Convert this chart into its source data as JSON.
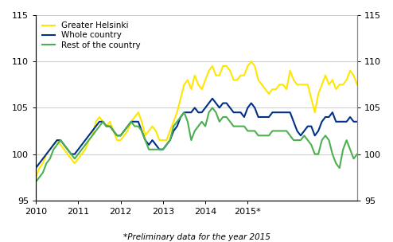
{
  "greater_helsinki": [
    97.5,
    98.5,
    99.0,
    100.0,
    100.5,
    101.0,
    101.5,
    101.0,
    100.5,
    100.0,
    99.5,
    99.0,
    99.5,
    100.0,
    100.5,
    101.5,
    102.0,
    103.5,
    104.0,
    103.5,
    103.0,
    103.5,
    102.5,
    101.5,
    101.5,
    102.0,
    102.5,
    103.5,
    104.0,
    104.5,
    103.5,
    102.0,
    102.5,
    103.0,
    102.5,
    101.5,
    101.5,
    101.5,
    102.5,
    103.5,
    104.5,
    106.0,
    107.5,
    108.0,
    107.0,
    108.5,
    107.5,
    107.0,
    108.0,
    109.0,
    109.5,
    108.5,
    108.5,
    109.5,
    109.5,
    109.0,
    108.0,
    108.0,
    108.5,
    108.5,
    109.5,
    110.0,
    109.5,
    108.0,
    107.5,
    107.0,
    106.5,
    107.0,
    107.0,
    107.5,
    107.5,
    107.0,
    109.0,
    108.0,
    107.5,
    107.5,
    107.5,
    107.5,
    106.0,
    104.5,
    106.5,
    107.5,
    108.5,
    107.5,
    108.0,
    107.0,
    107.5,
    107.5,
    108.0,
    109.0,
    108.5,
    107.5
  ],
  "whole_country": [
    98.5,
    99.0,
    99.5,
    100.0,
    100.5,
    101.0,
    101.5,
    101.5,
    101.0,
    100.5,
    100.0,
    100.0,
    100.5,
    101.0,
    101.5,
    102.0,
    102.5,
    103.0,
    103.5,
    103.5,
    103.0,
    103.0,
    102.5,
    102.0,
    102.0,
    102.5,
    103.0,
    103.5,
    103.5,
    103.5,
    102.5,
    101.5,
    101.0,
    101.5,
    101.0,
    100.5,
    100.5,
    101.0,
    101.5,
    102.5,
    103.0,
    104.0,
    104.5,
    104.5,
    104.5,
    105.0,
    104.5,
    104.5,
    105.0,
    105.5,
    106.0,
    105.5,
    105.0,
    105.5,
    105.5,
    105.0,
    104.5,
    104.5,
    104.5,
    104.0,
    105.0,
    105.5,
    105.0,
    104.0,
    104.0,
    104.0,
    104.0,
    104.5,
    104.5,
    104.5,
    104.5,
    104.5,
    104.5,
    103.5,
    102.5,
    102.0,
    102.5,
    103.0,
    103.0,
    102.0,
    102.5,
    103.5,
    104.0,
    104.0,
    104.5,
    103.5,
    103.5,
    103.5,
    103.5,
    104.0,
    103.5,
    103.5
  ],
  "rest_of_country": [
    97.0,
    97.5,
    98.0,
    99.0,
    99.5,
    100.5,
    101.0,
    101.5,
    101.0,
    100.5,
    100.0,
    99.5,
    100.0,
    100.5,
    101.0,
    101.5,
    102.0,
    102.5,
    103.0,
    103.5,
    103.0,
    103.0,
    102.5,
    102.0,
    102.0,
    102.5,
    103.0,
    103.5,
    103.0,
    103.0,
    102.5,
    101.5,
    100.5,
    100.5,
    100.5,
    100.5,
    100.5,
    101.0,
    101.5,
    103.0,
    103.5,
    104.0,
    104.5,
    103.5,
    101.5,
    102.5,
    103.0,
    103.5,
    103.0,
    104.5,
    105.0,
    104.5,
    103.5,
    104.0,
    104.0,
    103.5,
    103.0,
    103.0,
    103.0,
    103.0,
    102.5,
    102.5,
    102.5,
    102.0,
    102.0,
    102.0,
    102.0,
    102.5,
    102.5,
    102.5,
    102.5,
    102.5,
    102.0,
    101.5,
    101.5,
    101.5,
    102.0,
    101.5,
    101.0,
    100.0,
    100.0,
    101.5,
    102.0,
    101.5,
    100.0,
    99.0,
    98.5,
    100.5,
    101.5,
    100.5,
    99.5,
    100.0
  ],
  "colors": {
    "greater_helsinki": "#FFE600",
    "whole_country": "#003087",
    "rest_of_country": "#4CAF50"
  },
  "ylim": [
    95,
    115
  ],
  "yticks": [
    95,
    100,
    105,
    110,
    115
  ],
  "footnote": "*Preliminary data for the year 2015",
  "legend_labels": [
    "Greater Helsinki",
    "Whole country",
    "Rest of the country"
  ],
  "xtick_labels": [
    "2010",
    "2011",
    "2012",
    "2013",
    "2014",
    "2015*"
  ],
  "linewidth": 1.5
}
